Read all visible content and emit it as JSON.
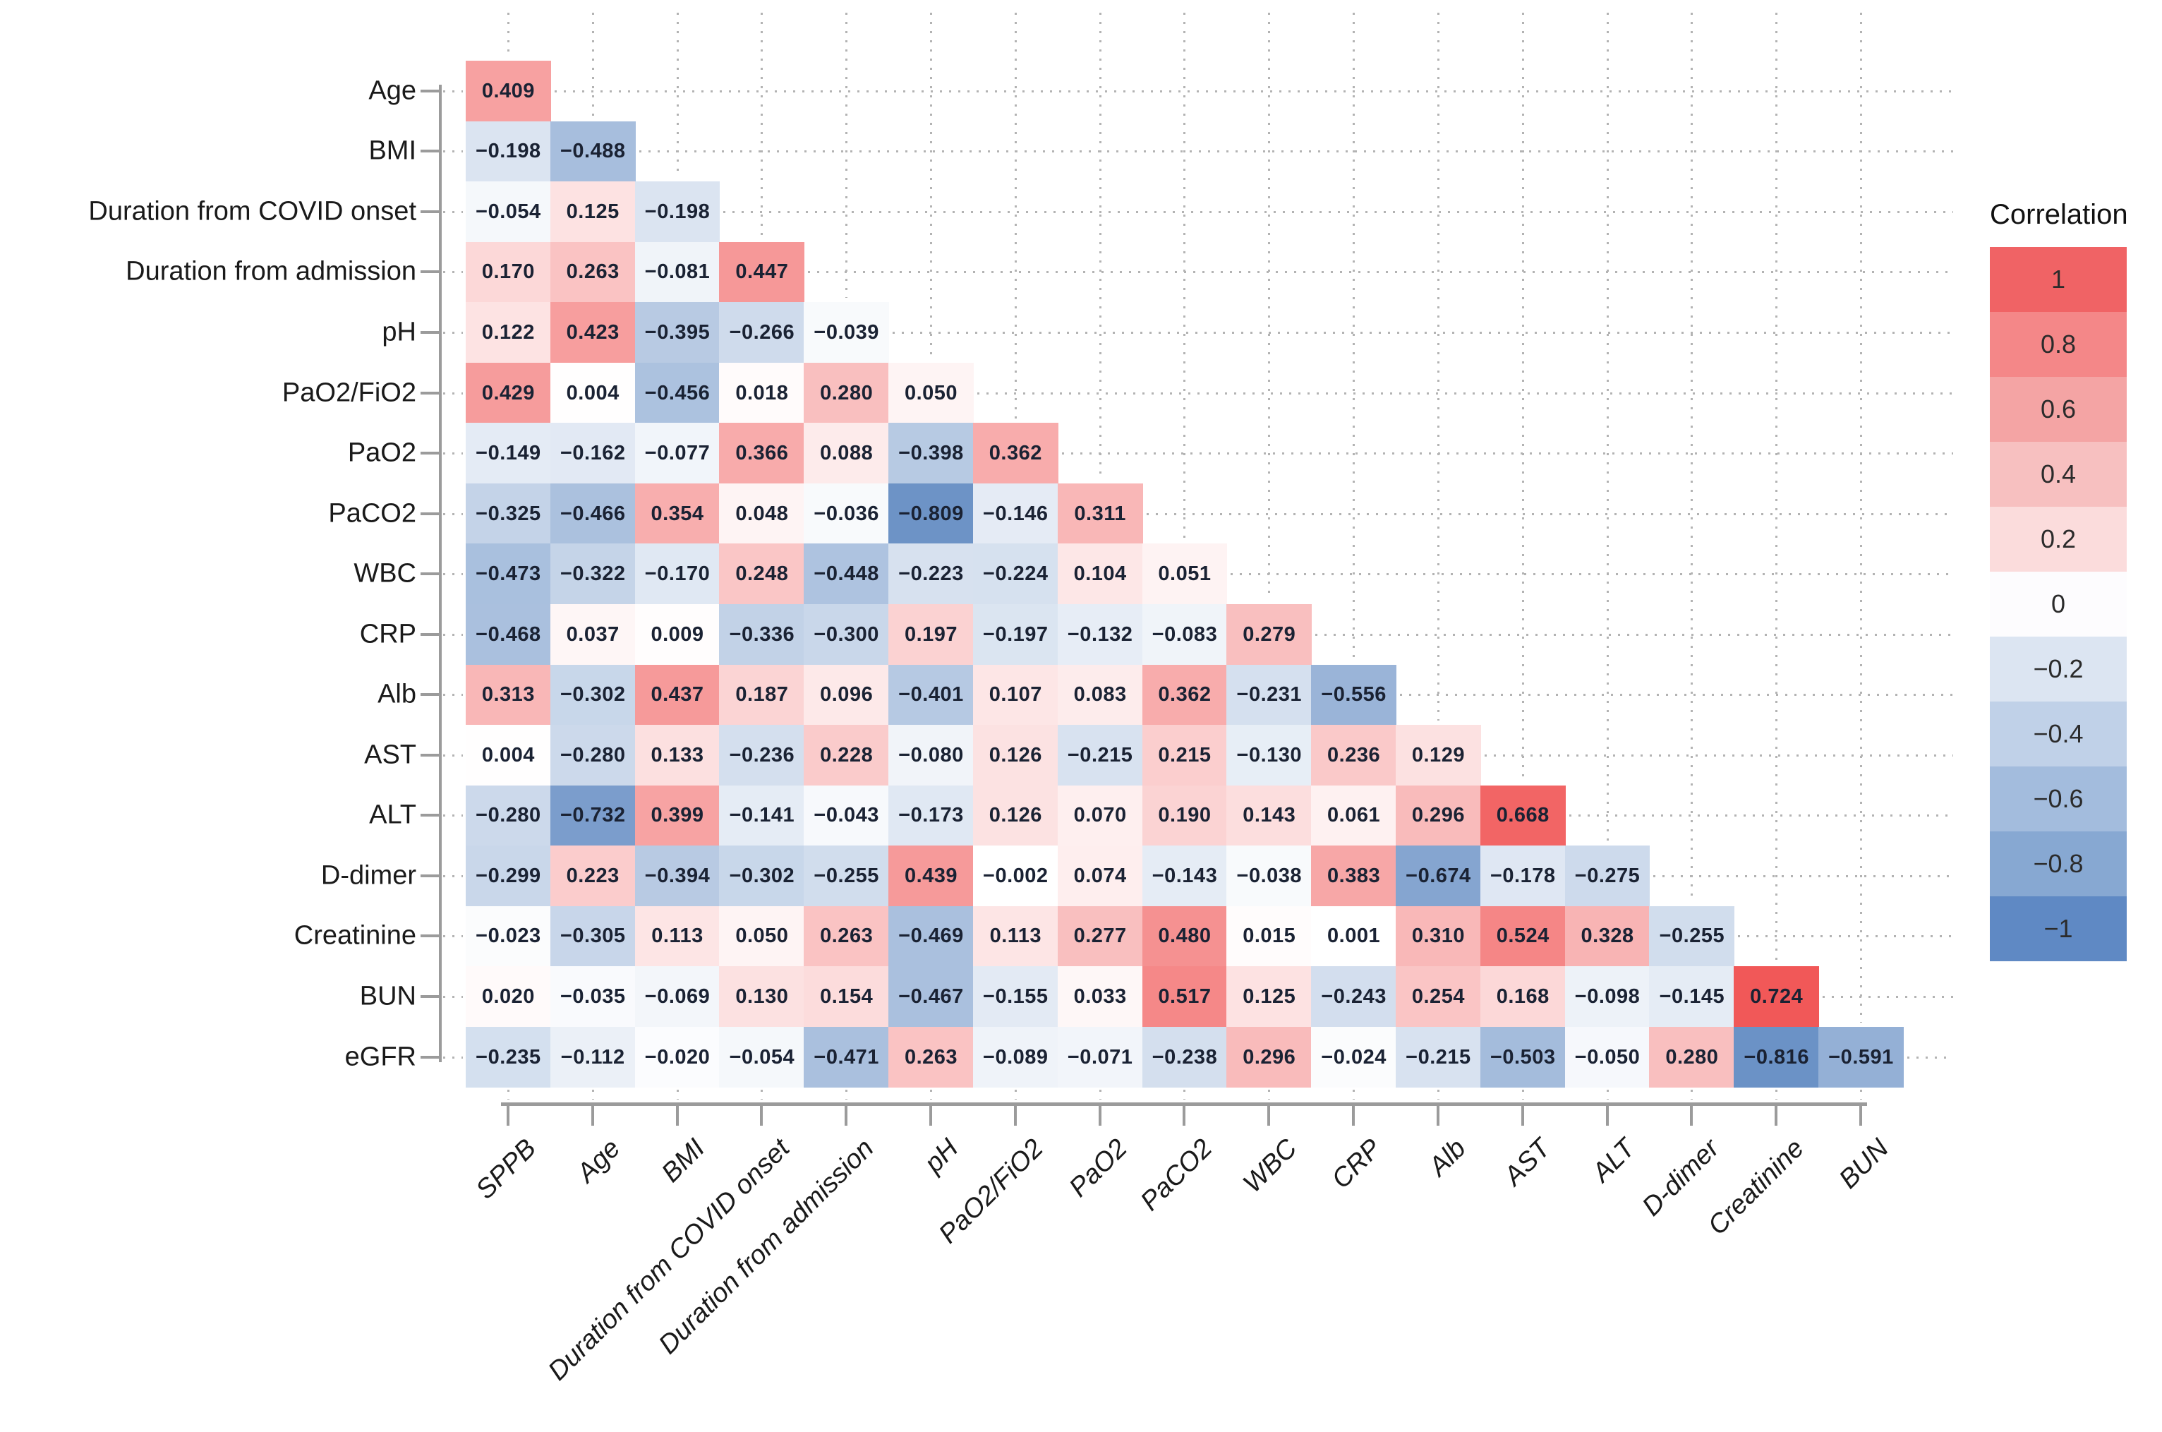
{
  "legend": {
    "title": "Correlation",
    "bands": [
      {
        "label": "1",
        "color": "#f06365"
      },
      {
        "label": "0.8",
        "color": "#f48788"
      },
      {
        "label": "0.6",
        "color": "#f4a4a4"
      },
      {
        "label": "0.4",
        "color": "#f7c0c0"
      },
      {
        "label": "0.2",
        "color": "#fbdcdc"
      },
      {
        "label": "0",
        "color": "#fdfcfe"
      },
      {
        "label": "−0.2",
        "color": "#dce5f2"
      },
      {
        "label": "−0.4",
        "color": "#c0d1e8"
      },
      {
        "label": "−0.6",
        "color": "#a3bcdd"
      },
      {
        "label": "−0.8",
        "color": "#87a8d2"
      },
      {
        "label": "−1",
        "color": "#5f89c4"
      }
    ]
  },
  "chart_data": {
    "type": "heatmap",
    "subtype": "lower-triangular-correlation-matrix",
    "legend_title": "Correlation",
    "legend_position": "right",
    "value_range": [
      -1,
      1
    ],
    "grid": "dotted",
    "color_scale": {
      "negative_end": "#4a79b9",
      "zero": "#ffffff",
      "positive_end": "#eb1919"
    },
    "row_labels": [
      "Age",
      "BMI",
      "Duration from COVID onset",
      "Duration from admission",
      "pH",
      "PaO2/FiO2",
      "PaO2",
      "PaCO2",
      "WBC",
      "CRP",
      "Alb",
      "AST",
      "ALT",
      "D-dimer",
      "Creatinine",
      "BUN",
      "eGFR"
    ],
    "col_labels": [
      "SPPB",
      "Age",
      "BMI",
      "Duration from COVID onset",
      "Duration from admission",
      "pH",
      "PaO2/FiO2",
      "PaO2",
      "PaCO2",
      "WBC",
      "CRP",
      "Alb",
      "AST",
      "ALT",
      "D-dimer",
      "Creatinine",
      "BUN"
    ],
    "values": [
      [
        0.409
      ],
      [
        -0.198,
        -0.488
      ],
      [
        -0.054,
        0.125,
        -0.198
      ],
      [
        0.17,
        0.263,
        -0.081,
        0.447
      ],
      [
        0.122,
        0.423,
        -0.395,
        -0.266,
        -0.039
      ],
      [
        0.429,
        0.004,
        -0.456,
        0.018,
        0.28,
        0.05
      ],
      [
        -0.149,
        -0.162,
        -0.077,
        0.366,
        0.088,
        -0.398,
        0.362
      ],
      [
        -0.325,
        -0.466,
        0.354,
        0.048,
        -0.036,
        -0.809,
        -0.146,
        0.311
      ],
      [
        -0.473,
        -0.322,
        -0.17,
        0.248,
        -0.448,
        -0.223,
        -0.224,
        0.104,
        0.051
      ],
      [
        -0.468,
        0.037,
        0.009,
        -0.336,
        -0.3,
        0.197,
        -0.197,
        -0.132,
        -0.083,
        0.279
      ],
      [
        0.313,
        -0.302,
        0.437,
        0.187,
        0.096,
        -0.401,
        0.107,
        0.083,
        0.362,
        -0.231,
        -0.556
      ],
      [
        0.004,
        -0.28,
        0.133,
        -0.236,
        0.228,
        -0.08,
        0.126,
        -0.215,
        0.215,
        -0.13,
        0.236,
        0.129
      ],
      [
        -0.28,
        -0.732,
        0.399,
        -0.141,
        -0.043,
        -0.173,
        0.126,
        0.07,
        0.19,
        0.143,
        0.061,
        0.296,
        0.668
      ],
      [
        -0.299,
        0.223,
        -0.394,
        -0.302,
        -0.255,
        0.439,
        -0.002,
        0.074,
        -0.143,
        -0.038,
        0.383,
        -0.674,
        -0.178,
        -0.275
      ],
      [
        -0.023,
        -0.305,
        0.113,
        0.05,
        0.263,
        -0.469,
        0.113,
        0.277,
        0.48,
        0.015,
        0.001,
        0.31,
        0.524,
        0.328,
        -0.255
      ],
      [
        0.02,
        -0.035,
        -0.069,
        0.13,
        0.154,
        -0.467,
        -0.155,
        0.033,
        0.517,
        0.125,
        -0.243,
        0.254,
        0.168,
        -0.098,
        -0.145,
        0.724
      ],
      [
        -0.235,
        -0.112,
        -0.02,
        -0.054,
        -0.471,
        0.263,
        -0.089,
        -0.071,
        -0.238,
        0.296,
        -0.024,
        -0.215,
        -0.503,
        -0.05,
        0.28,
        -0.816,
        -0.591
      ]
    ]
  }
}
